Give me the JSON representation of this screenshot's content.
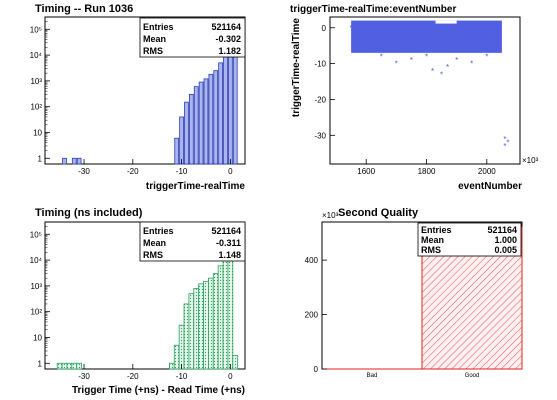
{
  "panels": [
    {
      "title": "Timing -- Run 1036",
      "xlabel": "triggerTime-realTime",
      "xticks": [
        "-30",
        "-20",
        "-10",
        "0"
      ],
      "yticks": [
        "1",
        "10",
        "10²",
        "10³",
        "10⁴",
        "10⁵"
      ],
      "stats": [
        {
          "label": "Entries",
          "value": "521164"
        },
        {
          "label": "Mean",
          "value": "-0.302"
        },
        {
          "label": "RMS",
          "value": "1.182"
        }
      ]
    },
    {
      "title": "triggerTime-realTime:eventNumber",
      "xlabel": "eventNumber",
      "ylabel": "triggerTime-realTime",
      "xticks": [
        "1600",
        "1800",
        "2000"
      ],
      "yticks": [
        "0",
        "-10",
        "-20",
        "-30"
      ],
      "exponent_label": "×10³"
    },
    {
      "title": "Timing (ns included)",
      "xlabel": "Trigger Time (+ns) - Read Time (+ns)",
      "xticks": [
        "-30",
        "-20",
        "-10",
        "0"
      ],
      "yticks": [
        "1",
        "10",
        "10²",
        "10³",
        "10⁴",
        "10⁵"
      ],
      "stats": [
        {
          "label": "Entries",
          "value": "521164"
        },
        {
          "label": "Mean",
          "value": "-0.311"
        },
        {
          "label": "RMS",
          "value": "1.148"
        }
      ]
    },
    {
      "title": "Second Quality",
      "xticks": [
        "Bad",
        "Good"
      ],
      "yticks": [
        "0",
        "200",
        "400"
      ],
      "exponent_label": "×10³",
      "stats": [
        {
          "label": "Entries",
          "value": "521164"
        },
        {
          "label": "Mean",
          "value": "1.000"
        },
        {
          "label": "RMS",
          "value": "0.005"
        }
      ]
    }
  ],
  "colors": {
    "h1_fill": "#aab4ee",
    "h1_line": "#2c3eb0",
    "h2_marker": "#5060e0",
    "h3_fill": "#e6f6ea",
    "h3_line": "#2aa060",
    "h4_line": "#e02020",
    "h4_hatch": "#e85050"
  },
  "chart_data": [
    {
      "type": "bar",
      "title": "Timing -- Run 1036",
      "xlabel": "triggerTime-realTime",
      "ylabel": "",
      "xlim": [
        -38,
        3
      ],
      "ylim": [
        0.6,
        300000
      ],
      "yscale": "log",
      "stats": {
        "Entries": 521164,
        "Mean": -0.302,
        "RMS": 1.182
      },
      "x": [
        -34,
        -32,
        -31,
        -11,
        -10,
        -9,
        -8,
        -7,
        -6,
        -5,
        -4,
        -3,
        -2,
        -1,
        0,
        1
      ],
      "values": [
        1,
        1,
        1,
        6,
        40,
        150,
        300,
        600,
        900,
        1200,
        1800,
        2500,
        5000,
        15000,
        200000,
        40000
      ]
    },
    {
      "type": "scatter",
      "title": "triggerTime-realTime:eventNumber",
      "xlabel": "eventNumber",
      "ylabel": "triggerTime-realTime",
      "xlim": [
        1480000,
        2110000
      ],
      "ylim": [
        -38,
        3
      ],
      "x": [
        1550000,
        1600000,
        1650000,
        1700000,
        1750000,
        1800000,
        1820000,
        1850000,
        1870000,
        1900000,
        1950000,
        2000000,
        2040000,
        2060000,
        2060000,
        2070000
      ],
      "y": [
        0,
        -5,
        -8,
        -10,
        -9,
        -8,
        -12,
        -13,
        -11,
        -9,
        -10,
        -8,
        -6,
        -31,
        -33,
        -32
      ]
    },
    {
      "type": "bar",
      "title": "Timing (ns included)",
      "xlabel": "Trigger Time (+ns) - Read Time (+ns)",
      "ylabel": "",
      "xlim": [
        -38,
        3
      ],
      "ylim": [
        0.6,
        300000
      ],
      "yscale": "log",
      "stats": {
        "Entries": 521164,
        "Mean": -0.311,
        "RMS": 1.148
      },
      "x": [
        -35,
        -34,
        -33,
        -32,
        -31,
        -12,
        -11,
        -10,
        -9,
        -8,
        -7,
        -6,
        -5,
        -4,
        -3,
        -2,
        -1,
        0,
        1
      ],
      "values": [
        1,
        1,
        1,
        1,
        1,
        1,
        5,
        30,
        200,
        500,
        800,
        1200,
        1500,
        2000,
        3000,
        6000,
        20000,
        180000,
        2
      ]
    },
    {
      "type": "bar",
      "title": "Second Quality",
      "xlabel": "",
      "ylabel": "",
      "categories": [
        "Bad",
        "Good"
      ],
      "values": [
        0,
        521164
      ],
      "ylim": [
        0,
        540000
      ],
      "stats": {
        "Entries": 521164,
        "Mean": 1.0,
        "RMS": 0.005
      }
    }
  ]
}
